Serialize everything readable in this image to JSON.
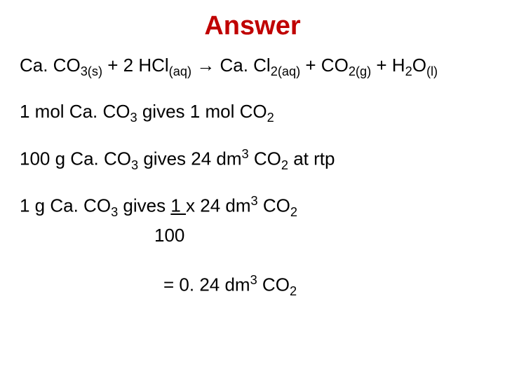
{
  "title": "Answer",
  "title_color": "#c00000",
  "background_color": "#ffffff",
  "body_color": "#000000",
  "font_family": "Arial",
  "title_fontsize": 38,
  "body_fontsize": 26,
  "equation": {
    "r1": "Ca. CO",
    "r1_sub": "3(s)",
    "plus1": " + 2 HCl",
    "r2_sub": "(aq)",
    "arrow": " → Ca. Cl",
    "p1_sub": "2(aq)",
    "plus2": " + CO",
    "p2_sub": "2(g)",
    "plus3": " + H",
    "p3_sub1": "2",
    "p3_mid": "O",
    "p3_sub2": "(l)"
  },
  "line2": {
    "a": "1 mol Ca. CO",
    "a_sub": "3",
    "b": " gives 1 mol CO",
    "b_sub": "2"
  },
  "line3": {
    "a": "100 g Ca. CO",
    "a_sub": "3",
    "b": " gives 24 dm",
    "b_sup": "3",
    "c": " CO",
    "c_sub": "2",
    "d": " at rtp"
  },
  "line4": {
    "a": "1 g Ca. CO",
    "a_sub": "3",
    "b": " gives  ",
    "frac_top": "1  ",
    "c": " x 24 dm",
    "c_sup": "3",
    "d": " CO",
    "d_sub": "2"
  },
  "line4b": {
    "denom": "100"
  },
  "line5": {
    "a": "= 0. 24 dm",
    "a_sup": "3",
    "b": " CO",
    "b_sub": "2"
  }
}
